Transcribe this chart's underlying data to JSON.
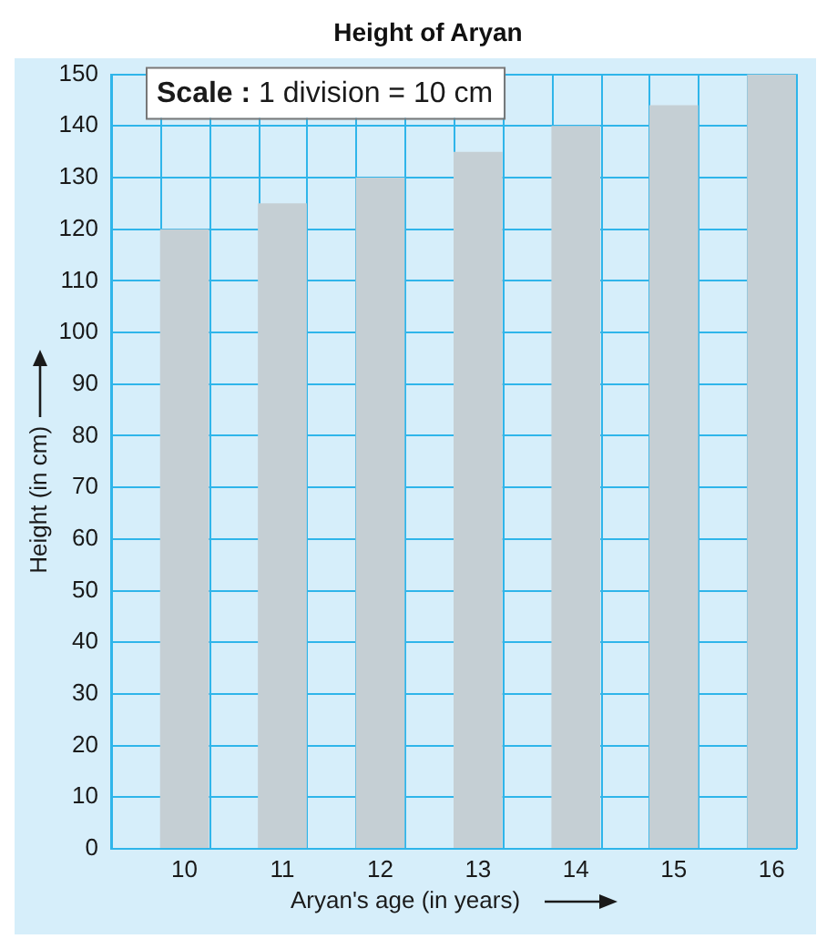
{
  "chart_data": {
    "type": "bar",
    "title": "Height of Aryan",
    "xlabel": "Aryan's age (in years)",
    "ylabel": "Height (in cm)",
    "categories": [
      "10",
      "11",
      "12",
      "13",
      "14",
      "15",
      "16"
    ],
    "values": [
      120,
      125,
      130,
      135,
      140,
      144,
      150
    ],
    "color": "#c5cfd4",
    "ylim": [
      0,
      150
    ],
    "yticks": [
      0,
      10,
      20,
      30,
      40,
      50,
      60,
      70,
      80,
      90,
      100,
      110,
      120,
      130,
      140,
      150
    ],
    "grid": true,
    "annotations": [
      "Scale : 1 division = 10 cm"
    ]
  }
}
